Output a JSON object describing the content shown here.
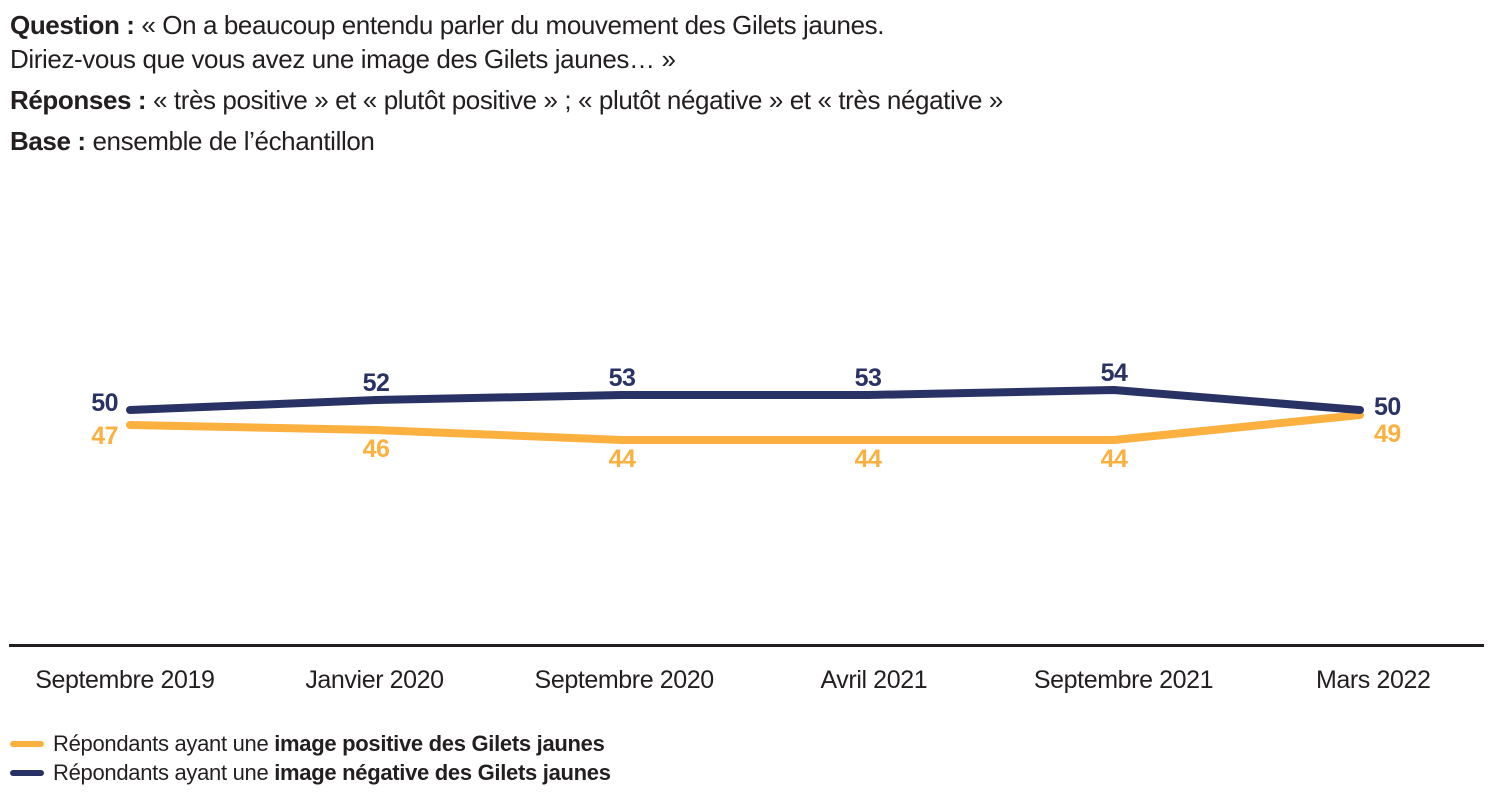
{
  "page": {
    "background_color": "#ffffff",
    "text_color": "#231F20"
  },
  "header": {
    "question_label": "Question :",
    "question_line1": "« On a beaucoup entendu parler du mouvement des Gilets jaunes.",
    "question_line2": "Diriez-vous que vous avez une image des Gilets jaunes… »",
    "responses_label": "Réponses :",
    "responses_text": "« très positive » et « plutôt positive » ; « plutôt négative » et « très négative »",
    "base_label": "Base :",
    "base_text": "ensemble de l’échantillon"
  },
  "chart_data": {
    "type": "line",
    "categories": [
      "Septembre 2019",
      "Janvier 2020",
      "Septembre 2020",
      "Avril 2021",
      "Septembre 2021",
      "Mars 2022"
    ],
    "series": [
      {
        "name": "Répondants ayant une image positive des Gilets jaunes",
        "legend_prefix": "Répondants ayant une ",
        "legend_bold": "image positive des Gilets jaunes",
        "color": "#FBB03F",
        "values": [
          47,
          46,
          44,
          44,
          44,
          49
        ]
      },
      {
        "name": "Répondants ayant une image négative des Gilets jaunes",
        "legend_prefix": "Répondants ayant une ",
        "legend_bold": "image négative des Gilets jaunes",
        "color": "#293264",
        "values": [
          50,
          52,
          53,
          53,
          54,
          50
        ]
      }
    ],
    "ylim": [
      40,
      58
    ],
    "grid": false,
    "data_labels": true,
    "legend_position": "bottom-left",
    "axis_line_color": "#231F20",
    "unit": "%"
  }
}
